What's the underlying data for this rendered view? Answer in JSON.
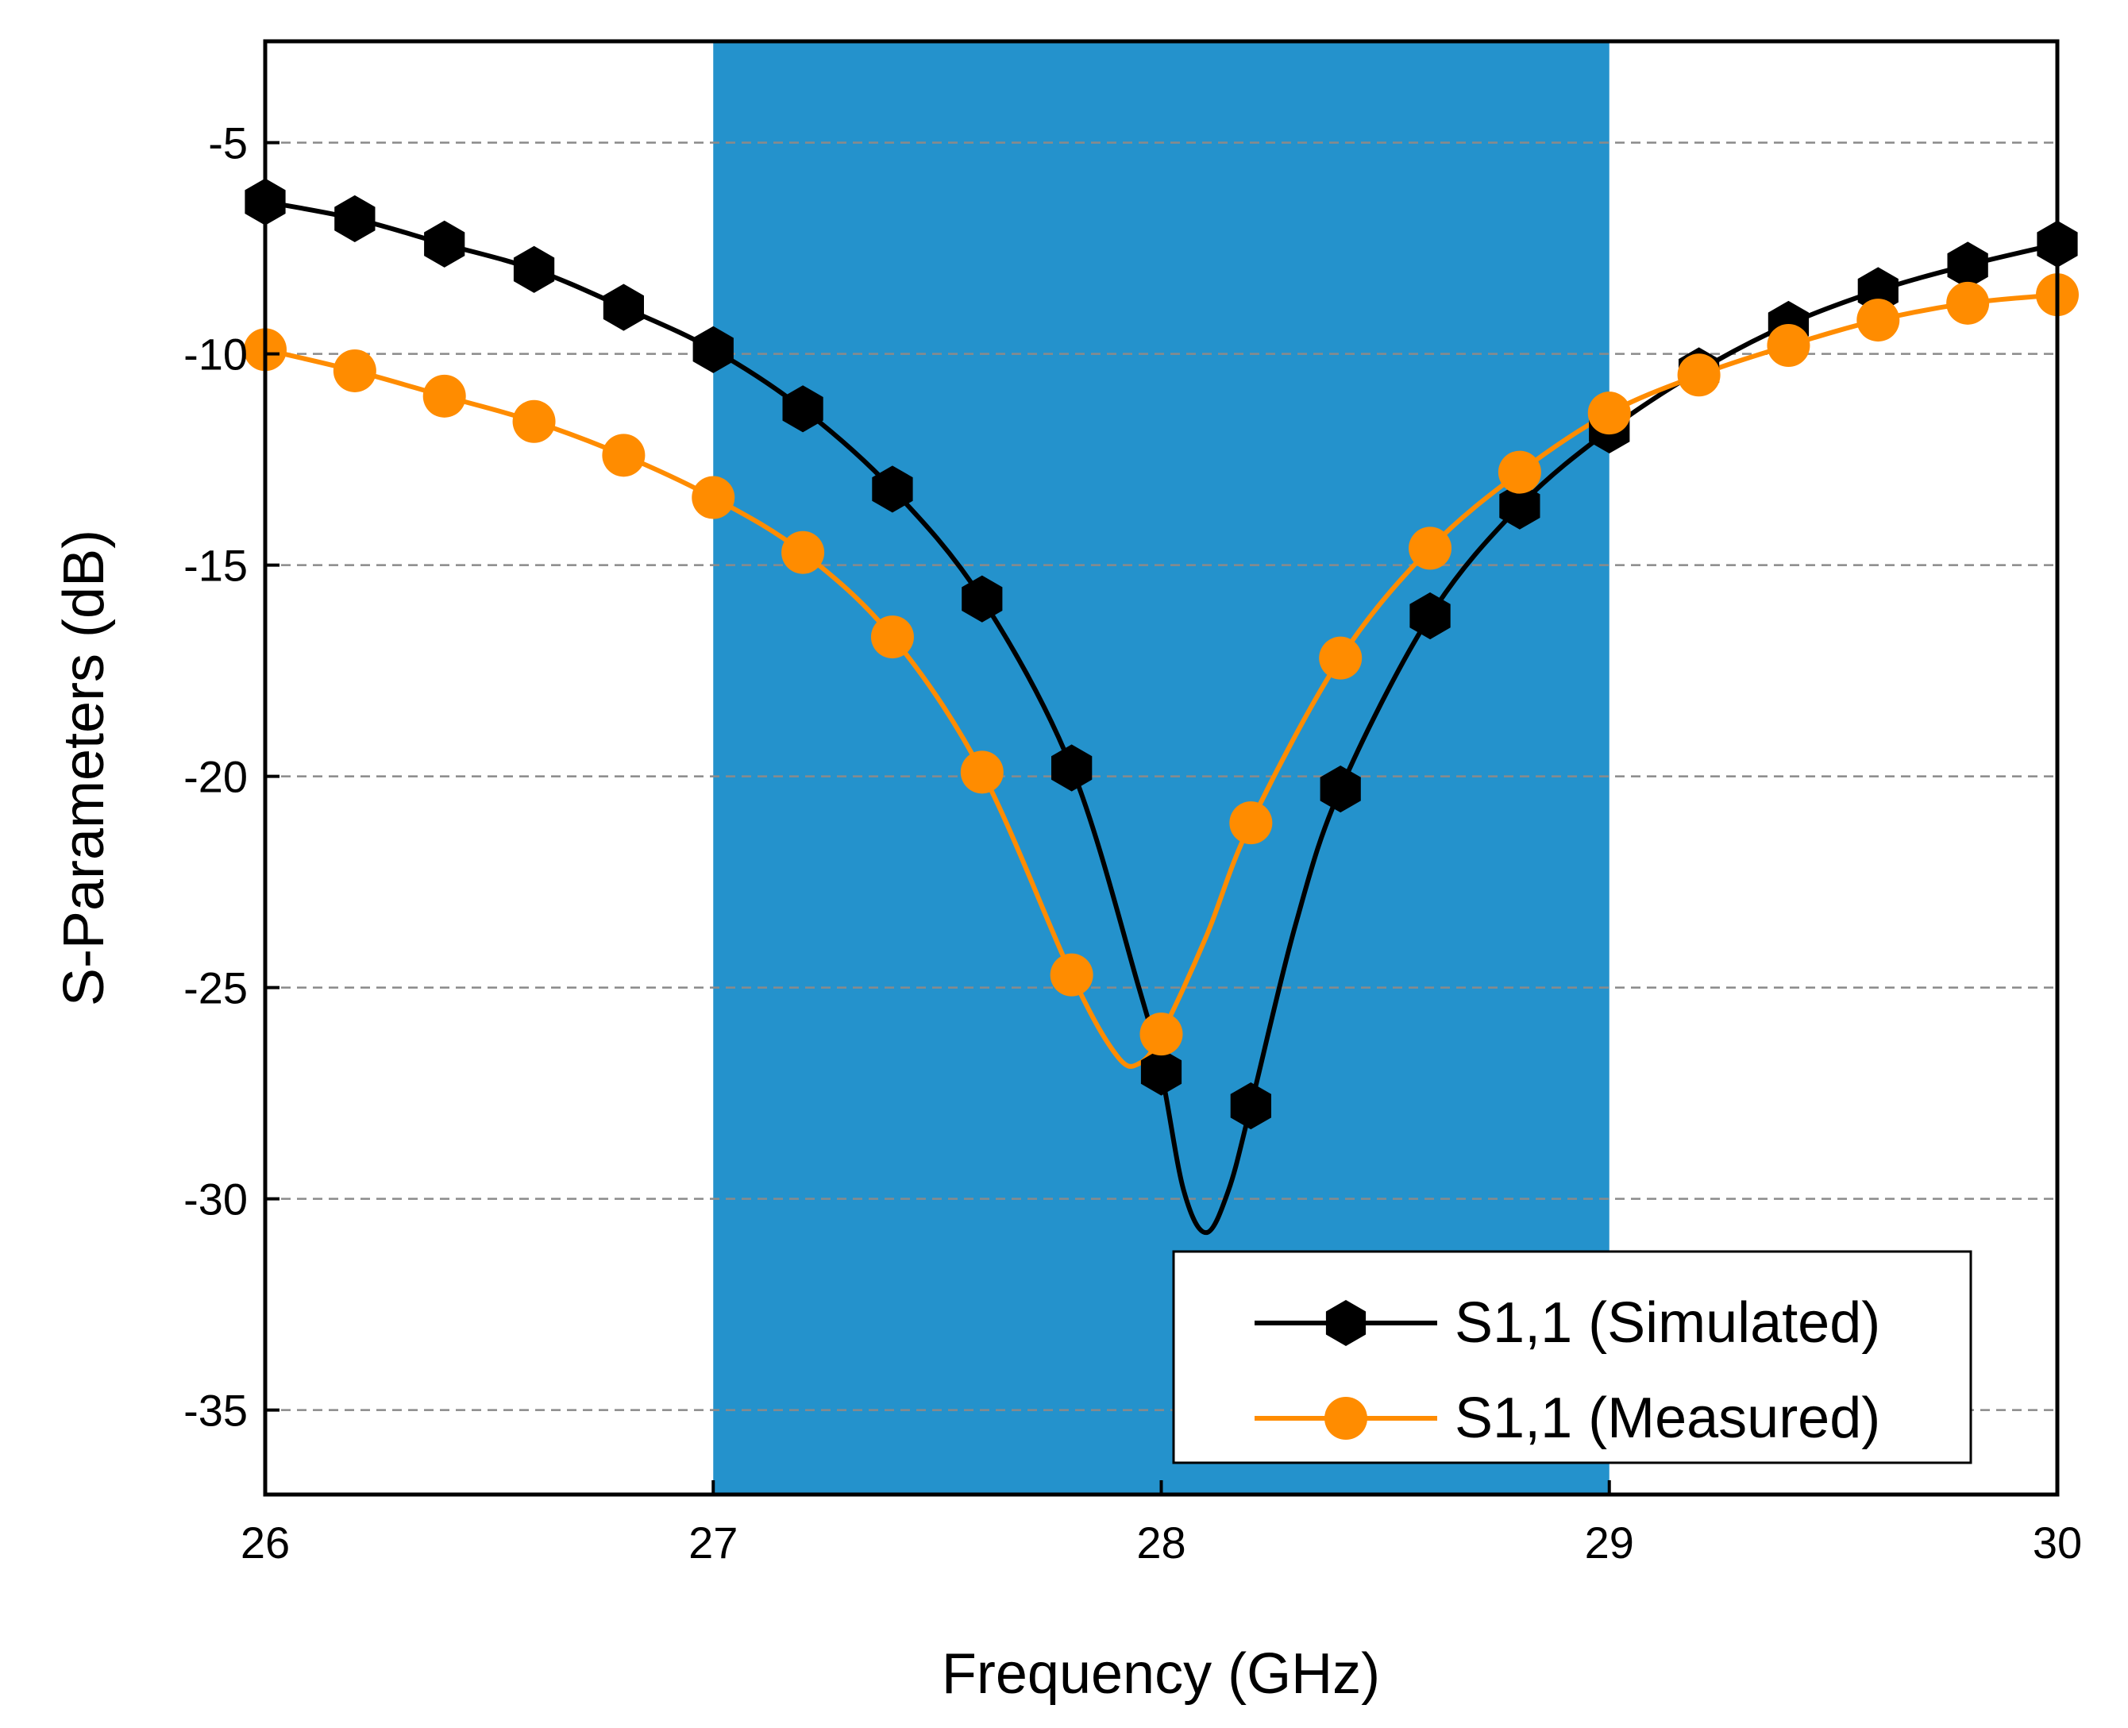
{
  "chart_data": {
    "type": "line",
    "xlabel": "Frequency (GHz)",
    "ylabel": "S-Parameters (dB)",
    "xlim": [
      26,
      30
    ],
    "ylim": [
      -37,
      -2.6
    ],
    "xticks": [
      26,
      27,
      28,
      29,
      30
    ],
    "xtick_labels": [
      "26",
      "27",
      "28",
      "29",
      "30"
    ],
    "yticks": [
      -5,
      -10,
      -15,
      -20,
      -25,
      -30,
      -35
    ],
    "ytick_labels": [
      "-5",
      "-10",
      "-15",
      "-20",
      "-25",
      "-30",
      "-35"
    ],
    "grid": "horizontal dashed",
    "shaded_band": {
      "x_start": 27,
      "x_end": 29,
      "color": "#2492cc"
    },
    "legend_position": "bottom-right",
    "series": [
      {
        "name": "S1,1 (Simulated)",
        "color": "#000000",
        "marker": "hexagon",
        "markers": {
          "x": [
            26.0,
            26.2,
            26.4,
            26.6,
            26.8,
            27.0,
            27.2,
            27.4,
            27.6,
            27.8,
            28.0,
            28.2,
            28.4,
            28.6,
            28.8,
            29.0,
            29.2,
            29.4,
            29.6,
            29.8,
            30.0
          ],
          "y": [
            -6.4,
            -6.8,
            -7.4,
            -8.0,
            -8.9,
            -9.9,
            -11.3,
            -13.2,
            -15.8,
            -19.8,
            -27.0,
            -27.8,
            -20.3,
            -16.2,
            -13.6,
            -11.8,
            -10.4,
            -9.3,
            -8.5,
            -7.9,
            -7.4
          ]
        },
        "curve": {
          "x": [
            26.0,
            26.2,
            26.4,
            26.6,
            26.8,
            27.0,
            27.2,
            27.4,
            27.6,
            27.8,
            27.95,
            28.0,
            28.05,
            28.1,
            28.15,
            28.2,
            28.3,
            28.4,
            28.6,
            28.8,
            29.0,
            29.2,
            29.4,
            29.6,
            29.8,
            30.0
          ],
          "y": [
            -6.4,
            -6.8,
            -7.4,
            -8.0,
            -8.9,
            -9.9,
            -11.3,
            -13.2,
            -15.8,
            -19.8,
            -25.0,
            -27.0,
            -29.8,
            -30.8,
            -29.8,
            -27.8,
            -23.5,
            -20.3,
            -16.2,
            -13.6,
            -11.8,
            -10.4,
            -9.3,
            -8.5,
            -7.9,
            -7.4
          ]
        }
      },
      {
        "name": "S1,1 (Measured)",
        "color": "#ff8c00",
        "marker": "circle",
        "markers": {
          "x": [
            26.0,
            26.2,
            26.4,
            26.6,
            26.8,
            27.0,
            27.2,
            27.4,
            27.6,
            27.8,
            28.0,
            28.2,
            28.4,
            28.6,
            28.8,
            29.0,
            29.2,
            29.4,
            29.6,
            29.8,
            30.0
          ],
          "y": [
            -9.9,
            -10.4,
            -11.0,
            -11.6,
            -12.4,
            -13.4,
            -14.7,
            -16.7,
            -19.9,
            -24.7,
            -26.1,
            -21.1,
            -17.2,
            -14.6,
            -12.8,
            -11.4,
            -10.5,
            -9.8,
            -9.2,
            -8.8,
            -8.6
          ]
        },
        "curve": {
          "x": [
            26.0,
            26.2,
            26.4,
            26.6,
            26.8,
            27.0,
            27.2,
            27.4,
            27.6,
            27.8,
            27.9,
            27.95,
            28.0,
            28.1,
            28.2,
            28.4,
            28.6,
            28.8,
            29.0,
            29.2,
            29.4,
            29.6,
            29.8,
            30.0
          ],
          "y": [
            -9.9,
            -10.4,
            -11.0,
            -11.6,
            -12.4,
            -13.4,
            -14.7,
            -16.7,
            -19.9,
            -24.7,
            -26.6,
            -26.8,
            -26.1,
            -23.8,
            -21.1,
            -17.2,
            -14.6,
            -12.8,
            -11.4,
            -10.5,
            -9.8,
            -9.2,
            -8.8,
            -8.6
          ]
        }
      }
    ]
  }
}
